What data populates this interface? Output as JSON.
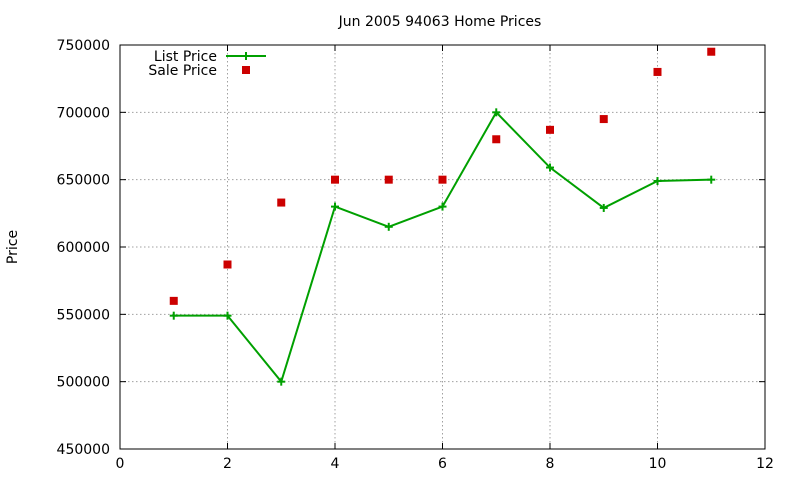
{
  "chart_data": {
    "type": "line",
    "title": "Jun 2005 94063 Home Prices",
    "xlabel": "",
    "ylabel": "Price",
    "xlim": [
      0,
      12
    ],
    "ylim": [
      450000,
      750000
    ],
    "x_ticks": [
      0,
      2,
      4,
      6,
      8,
      10,
      12
    ],
    "y_ticks": [
      450000,
      500000,
      550000,
      600000,
      650000,
      700000,
      750000
    ],
    "grid": true,
    "legend_position": "top-left",
    "series": [
      {
        "name": "List Price",
        "style": "linespoints",
        "marker": "plus",
        "color": "#00a000",
        "points": [
          {
            "x": 1,
            "y": 549000
          },
          {
            "x": 2,
            "y": 549000
          },
          {
            "x": 3,
            "y": 500000
          },
          {
            "x": 4,
            "y": 630000
          },
          {
            "x": 5,
            "y": 615000
          },
          {
            "x": 6,
            "y": 630000
          },
          {
            "x": 7,
            "y": 700000
          },
          {
            "x": 8,
            "y": 659000
          },
          {
            "x": 9,
            "y": 629000
          },
          {
            "x": 10,
            "y": 649000
          },
          {
            "x": 11,
            "y": 650000
          }
        ]
      },
      {
        "name": "Sale Price",
        "style": "points",
        "marker": "square",
        "color": "#cc0000",
        "points": [
          {
            "x": 1,
            "y": 560000
          },
          {
            "x": 2,
            "y": 587000
          },
          {
            "x": 3,
            "y": 633000
          },
          {
            "x": 4,
            "y": 650000
          },
          {
            "x": 5,
            "y": 650000
          },
          {
            "x": 6,
            "y": 650000
          },
          {
            "x": 7,
            "y": 680000
          },
          {
            "x": 8,
            "y": 687000
          },
          {
            "x": 9,
            "y": 695000
          },
          {
            "x": 10,
            "y": 730000
          },
          {
            "x": 11,
            "y": 745000
          }
        ]
      }
    ]
  }
}
